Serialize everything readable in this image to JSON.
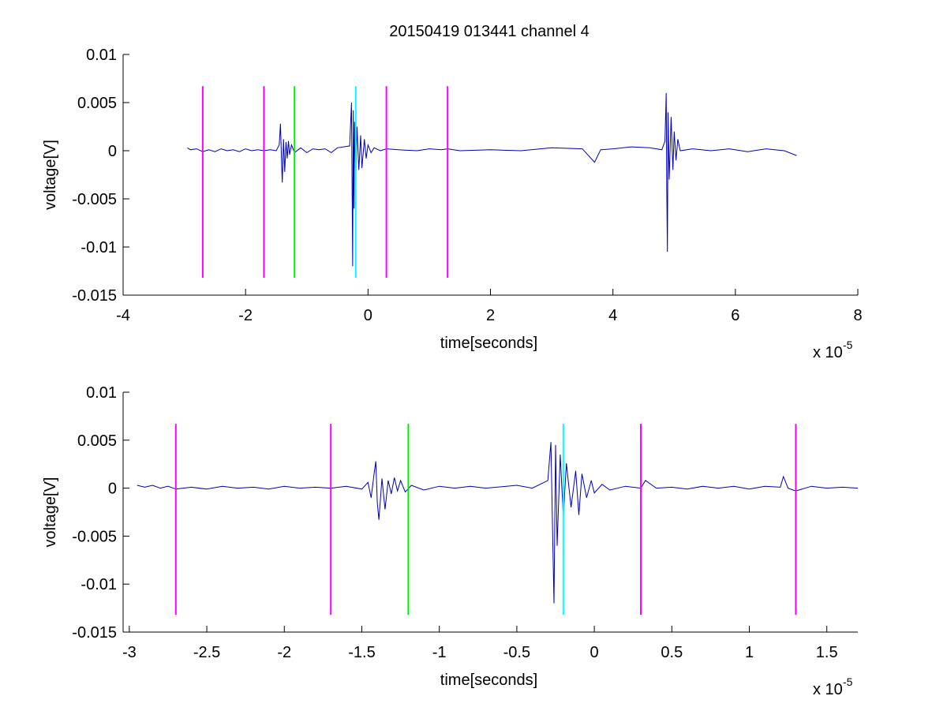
{
  "figure": {
    "title": "20150419 013441 channel 4"
  },
  "chart_data": [
    {
      "type": "line",
      "xlabel": "time[seconds]",
      "ylabel": "voltage[V]",
      "x_exponent_base": "x 10",
      "x_exponent_power": "-5",
      "xlim": [
        -4,
        8
      ],
      "ylim": [
        -0.015,
        0.01
      ],
      "xticks": [
        -4,
        -2,
        0,
        2,
        4,
        6,
        8
      ],
      "xtick_labels": [
        "-4",
        "-2",
        "0",
        "2",
        "4",
        "6",
        "8"
      ],
      "yticks": [
        0.01,
        0.005,
        0,
        -0.005,
        -0.01,
        -0.015
      ],
      "ytick_labels": [
        "0.01",
        "0.005",
        "0",
        "-0.005",
        "-0.01",
        "-0.015"
      ],
      "series_color": "#0000b3",
      "series": [
        {
          "points": [
            [
              -2.95,
              0.0003
            ],
            [
              -2.9,
              0.0001
            ],
            [
              -2.8,
              0.0002
            ],
            [
              -2.7,
              -0.0001
            ],
            [
              -2.6,
              0.0001
            ],
            [
              -2.5,
              -0.0001
            ],
            [
              -2.4,
              0.0002
            ],
            [
              -2.3,
              0.0
            ],
            [
              -2.2,
              0.0001
            ],
            [
              -2.1,
              -0.0001
            ],
            [
              -2.0,
              0.0002
            ],
            [
              -1.9,
              0.0
            ],
            [
              -1.8,
              0.0001
            ],
            [
              -1.7,
              0.0
            ],
            [
              -1.6,
              0.0001
            ],
            [
              -1.5,
              0.0
            ],
            [
              -1.45,
              0.0006
            ],
            [
              -1.43,
              0.0028
            ],
            [
              -1.41,
              -0.0015
            ],
            [
              -1.4,
              -0.0033
            ],
            [
              -1.38,
              0.0012
            ],
            [
              -1.36,
              -0.0022
            ],
            [
              -1.34,
              0.0009
            ],
            [
              -1.32,
              -0.0008
            ],
            [
              -1.3,
              0.001
            ],
            [
              -1.28,
              -0.0004
            ],
            [
              -1.25,
              0.0006
            ],
            [
              -1.2,
              -0.0002
            ],
            [
              -1.1,
              0.0003
            ],
            [
              -1.0,
              -0.0002
            ],
            [
              -0.9,
              0.0002
            ],
            [
              -0.8,
              0.0001
            ],
            [
              -0.7,
              0.0002
            ],
            [
              -0.6,
              -0.0002
            ],
            [
              -0.5,
              0.0003
            ],
            [
              -0.3,
              0.0005
            ],
            [
              -0.27,
              0.005
            ],
            [
              -0.26,
              -0.004
            ],
            [
              -0.25,
              -0.012
            ],
            [
              -0.24,
              0.0042
            ],
            [
              -0.23,
              -0.006
            ],
            [
              -0.22,
              0.003
            ],
            [
              -0.2,
              -0.003
            ],
            [
              -0.18,
              0.0025
            ],
            [
              -0.15,
              -0.002
            ],
            [
              -0.12,
              0.0016
            ],
            [
              -0.1,
              -0.0018
            ],
            [
              -0.06,
              0.0012
            ],
            [
              -0.03,
              -0.0008
            ],
            [
              0.0,
              0.0006
            ],
            [
              0.05,
              -0.0002
            ],
            [
              0.1,
              0.0003
            ],
            [
              0.2,
              0.0
            ],
            [
              0.3,
              0.0002
            ],
            [
              0.5,
              0.0001
            ],
            [
              0.8,
              0.0
            ],
            [
              1.0,
              0.0002
            ],
            [
              1.2,
              0.0001
            ],
            [
              1.3,
              0.0002
            ],
            [
              1.5,
              0.0
            ],
            [
              2.0,
              0.0001
            ],
            [
              2.5,
              0.0
            ],
            [
              3.0,
              0.0003
            ],
            [
              3.5,
              0.0002
            ],
            [
              3.7,
              -0.0012
            ],
            [
              3.8,
              0.0001
            ],
            [
              4.0,
              0.0002
            ],
            [
              4.3,
              0.0004
            ],
            [
              4.6,
              0.0003
            ],
            [
              4.8,
              0.0001
            ],
            [
              4.85,
              0.001
            ],
            [
              4.87,
              0.006
            ],
            [
              4.88,
              -0.004
            ],
            [
              4.89,
              -0.0105
            ],
            [
              4.9,
              0.004
            ],
            [
              4.92,
              -0.003
            ],
            [
              4.95,
              0.0035
            ],
            [
              4.98,
              -0.002
            ],
            [
              5.0,
              0.002
            ],
            [
              5.03,
              -0.001
            ],
            [
              5.06,
              0.0012
            ],
            [
              5.1,
              0.0
            ],
            [
              5.3,
              0.0002
            ],
            [
              5.6,
              0.0
            ],
            [
              5.9,
              0.0002
            ],
            [
              6.2,
              -0.0001
            ],
            [
              6.5,
              0.0002
            ],
            [
              6.8,
              0.0
            ],
            [
              7.0,
              -0.0005
            ]
          ]
        }
      ],
      "vertical_markers": [
        {
          "x": -2.7,
          "color": "#ff00ff"
        },
        {
          "x": -1.7,
          "color": "#ff00ff"
        },
        {
          "x": -1.2,
          "color": "#00ee00"
        },
        {
          "x": -0.2,
          "color": "#00ffff"
        },
        {
          "x": 0.3,
          "color": "#ff00ff"
        },
        {
          "x": 1.3,
          "color": "#ff00ff"
        }
      ],
      "marker_range": [
        -0.0132,
        0.0067
      ]
    },
    {
      "type": "line",
      "xlabel": "time[seconds]",
      "ylabel": "voltage[V]",
      "x_exponent_base": "x 10",
      "x_exponent_power": "-5",
      "xlim": [
        -3.04,
        1.7
      ],
      "ylim": [
        -0.015,
        0.01
      ],
      "xticks": [
        -3,
        -2.5,
        -2,
        -1.5,
        -1,
        -0.5,
        0,
        0.5,
        1,
        1.5
      ],
      "xtick_labels": [
        "-3",
        "-2.5",
        "-2",
        "-1.5",
        "-1",
        "-0.5",
        "0",
        "0.5",
        "1",
        "1.5"
      ],
      "yticks": [
        0.01,
        0.005,
        0,
        -0.005,
        -0.01,
        -0.015
      ],
      "ytick_labels": [
        "0.01",
        "0.005",
        "0",
        "-0.005",
        "-0.01",
        "-0.015"
      ],
      "series_color": "#0000b3",
      "series": [
        {
          "points": [
            [
              -2.95,
              0.0003
            ],
            [
              -2.9,
              0.0001
            ],
            [
              -2.85,
              0.0003
            ],
            [
              -2.8,
              0.0
            ],
            [
              -2.75,
              0.0002
            ],
            [
              -2.7,
              -0.0001
            ],
            [
              -2.6,
              0.0001
            ],
            [
              -2.5,
              -0.0001
            ],
            [
              -2.4,
              0.0002
            ],
            [
              -2.3,
              0.0
            ],
            [
              -2.2,
              0.0001
            ],
            [
              -2.1,
              -0.0001
            ],
            [
              -2.0,
              0.0002
            ],
            [
              -1.9,
              0.0
            ],
            [
              -1.8,
              0.0001
            ],
            [
              -1.7,
              0.0
            ],
            [
              -1.6,
              0.0002
            ],
            [
              -1.5,
              -0.0001
            ],
            [
              -1.46,
              0.0006
            ],
            [
              -1.44,
              -0.001
            ],
            [
              -1.42,
              0.0016
            ],
            [
              -1.41,
              0.0028
            ],
            [
              -1.4,
              -0.0015
            ],
            [
              -1.39,
              -0.0033
            ],
            [
              -1.37,
              0.001
            ],
            [
              -1.35,
              -0.0022
            ],
            [
              -1.33,
              0.0008
            ],
            [
              -1.31,
              -0.0006
            ],
            [
              -1.29,
              0.0011
            ],
            [
              -1.27,
              -0.0003
            ],
            [
              -1.25,
              0.0008
            ],
            [
              -1.22,
              -0.0004
            ],
            [
              -1.18,
              0.0003
            ],
            [
              -1.1,
              -0.0002
            ],
            [
              -1.0,
              0.0002
            ],
            [
              -0.9,
              0.0
            ],
            [
              -0.8,
              0.0002
            ],
            [
              -0.7,
              0.0
            ],
            [
              -0.5,
              0.0003
            ],
            [
              -0.4,
              0.0
            ],
            [
              -0.3,
              0.0008
            ],
            [
              -0.28,
              0.0048
            ],
            [
              -0.27,
              -0.004
            ],
            [
              -0.26,
              -0.012
            ],
            [
              -0.25,
              0.0045
            ],
            [
              -0.24,
              -0.006
            ],
            [
              -0.22,
              0.0035
            ],
            [
              -0.2,
              -0.003
            ],
            [
              -0.18,
              0.0026
            ],
            [
              -0.15,
              -0.002
            ],
            [
              -0.12,
              0.0018
            ],
            [
              -0.1,
              -0.0028
            ],
            [
              -0.08,
              0.0015
            ],
            [
              -0.05,
              -0.001
            ],
            [
              -0.02,
              0.0008
            ],
            [
              0.0,
              -0.0005
            ],
            [
              0.05,
              0.0004
            ],
            [
              0.1,
              -0.0002
            ],
            [
              0.2,
              0.0002
            ],
            [
              0.3,
              0.0
            ],
            [
              0.33,
              0.0008
            ],
            [
              0.4,
              0.0
            ],
            [
              0.5,
              0.0001
            ],
            [
              0.6,
              -0.0001
            ],
            [
              0.7,
              0.0002
            ],
            [
              0.8,
              0.0
            ],
            [
              0.9,
              0.0002
            ],
            [
              1.0,
              -0.0001
            ],
            [
              1.1,
              0.0002
            ],
            [
              1.2,
              0.0001
            ],
            [
              1.22,
              0.0012
            ],
            [
              1.25,
              0.0
            ],
            [
              1.3,
              -0.0003
            ],
            [
              1.4,
              0.0002
            ],
            [
              1.5,
              0.0
            ],
            [
              1.6,
              0.0001
            ],
            [
              1.7,
              0.0
            ]
          ]
        }
      ],
      "vertical_markers": [
        {
          "x": -2.7,
          "color": "#ff00ff"
        },
        {
          "x": -1.7,
          "color": "#ff00ff"
        },
        {
          "x": -1.2,
          "color": "#00ee00"
        },
        {
          "x": -0.2,
          "color": "#00ffff"
        },
        {
          "x": 0.3,
          "color": "#ff00ff"
        },
        {
          "x": 1.3,
          "color": "#ff00ff"
        }
      ],
      "marker_range": [
        -0.0132,
        0.0067
      ]
    }
  ]
}
